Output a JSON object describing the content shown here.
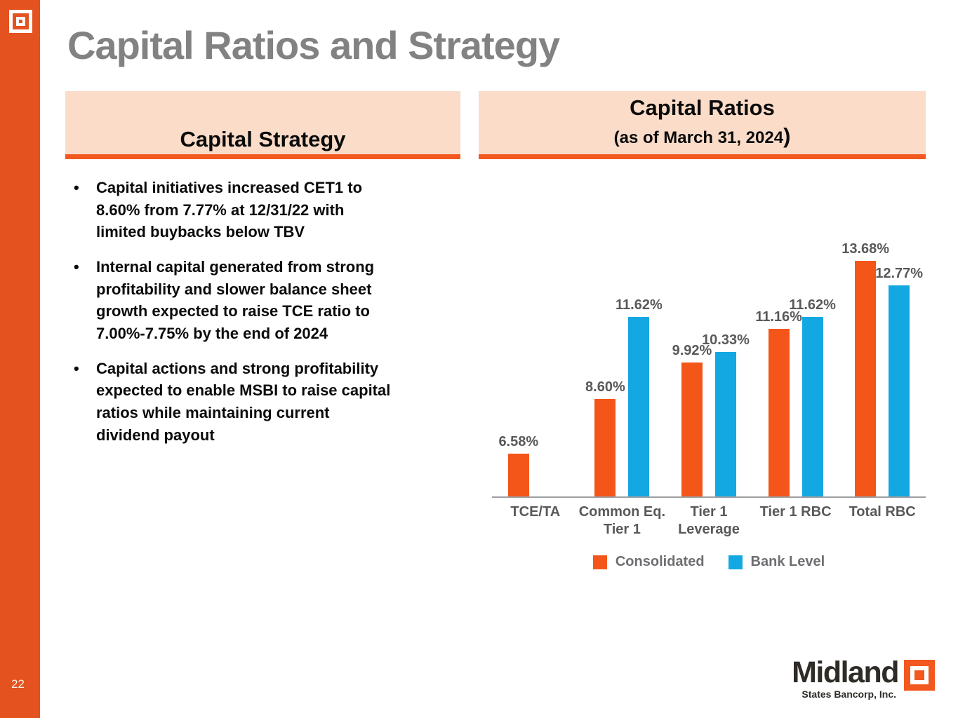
{
  "page_number": "22",
  "title": "Capital Ratios and Strategy",
  "strategy": {
    "header": "Capital Strategy",
    "bullets": [
      "Capital initiatives increased CET1 to\n8.60% from 7.77% at 12/31/22 with\nlimited buybacks below TBV",
      "Internal capital generated from strong\nprofitability and slower balance sheet\ngrowth expected to raise TCE ratio to\n7.00%-7.75% by the end of 2024",
      "Capital actions and strong profitability\nexpected to enable MSBI to raise capital\nratios while maintaining current\ndividend payout"
    ]
  },
  "ratios": {
    "header": "Capital Ratios",
    "subtitle": "(as of March 31, 2024",
    "subtitle_paren": ")"
  },
  "footer": {
    "brand": "Midland",
    "brand_sub": "States Bancorp, Inc."
  },
  "colors": {
    "accent_orange": "#F3581E",
    "sidebar_orange": "#E4521F",
    "panel_peach": "#FBDCC9",
    "title_gray": "#828282",
    "label_gray": "#595959",
    "bar_orange": "#F4561A",
    "bar_blue": "#14A8E3"
  },
  "chart_data": {
    "type": "bar",
    "title": "Capital Ratios (as of March 31, 2024)",
    "categories": [
      "TCE/TA",
      "Common Eq.\nTier 1",
      "Tier 1\nLeverage",
      "Tier 1 RBC",
      "Total RBC"
    ],
    "series": [
      {
        "name": "Consolidated",
        "color": "#F4561A",
        "values": [
          6.58,
          8.6,
          9.92,
          11.16,
          13.68
        ]
      },
      {
        "name": "Bank Level",
        "color": "#14A8E3",
        "values": [
          null,
          11.62,
          10.33,
          11.62,
          12.77
        ]
      }
    ],
    "value_label_format": "0.00%",
    "xlabel": "",
    "ylabel": "",
    "ylim": [
      5.0,
      14.6
    ],
    "grid": false,
    "legend_position": "bottom"
  }
}
